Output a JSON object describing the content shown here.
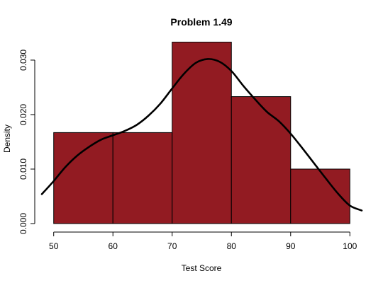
{
  "chart_data": {
    "type": "bar",
    "title": "Problem 1.49",
    "xlabel": "Test Score",
    "ylabel": "Density",
    "xlim": [
      48,
      102
    ],
    "ylim": [
      0,
      0.0335
    ],
    "x_ticks": [
      "50",
      "60",
      "70",
      "80",
      "90",
      "100"
    ],
    "y_ticks": [
      "0.000",
      "0.010",
      "0.020",
      "0.030"
    ],
    "grid": false,
    "bar_color": "#921b22",
    "bins": [
      {
        "from": 50,
        "to": 60,
        "density": 0.0167
      },
      {
        "from": 60,
        "to": 70,
        "density": 0.0167
      },
      {
        "from": 70,
        "to": 80,
        "density": 0.0333
      },
      {
        "from": 80,
        "to": 90,
        "density": 0.0233
      },
      {
        "from": 90,
        "to": 100,
        "density": 0.01
      }
    ],
    "density_curve": {
      "color": "#000000",
      "x": [
        48,
        50,
        52,
        54,
        56,
        58,
        60,
        62,
        64,
        66,
        68,
        70,
        72,
        74,
        76,
        78,
        80,
        82,
        84,
        86,
        88,
        90,
        92,
        94,
        96,
        98,
        100,
        102
      ],
      "y": [
        0.0054,
        0.0078,
        0.0104,
        0.0125,
        0.0141,
        0.0154,
        0.0162,
        0.017,
        0.0181,
        0.0198,
        0.022,
        0.0248,
        0.0275,
        0.0295,
        0.0302,
        0.0297,
        0.028,
        0.0253,
        0.0228,
        0.0205,
        0.0188,
        0.0165,
        0.0138,
        0.011,
        0.0082,
        0.0055,
        0.0033,
        0.0024
      ]
    }
  }
}
